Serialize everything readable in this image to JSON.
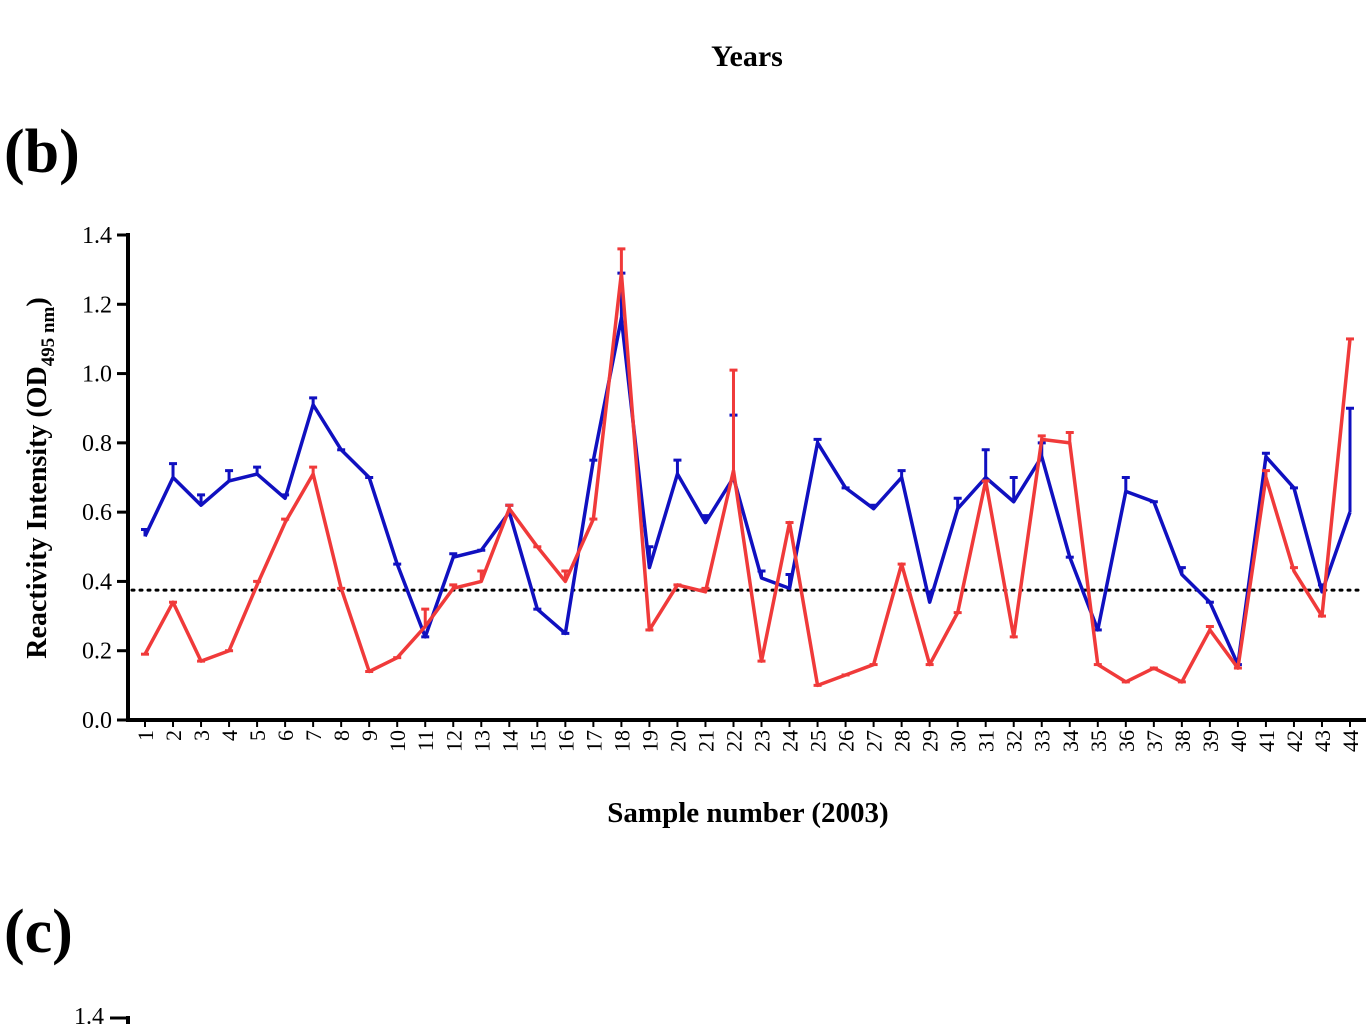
{
  "header": "Years",
  "panel_labels": [
    "(b)",
    "(c)"
  ],
  "chart_data": {
    "type": "line",
    "ylabel": "Reactivity Intensity (OD",
    "ylabel_sub": "495 nm",
    "ylabel_end": ")",
    "xlabel": "Sample number (2003)",
    "categories": [
      "1",
      "2",
      "3",
      "4",
      "5",
      "6",
      "7",
      "8",
      "9",
      "10",
      "11",
      "12",
      "13",
      "14",
      "15",
      "16",
      "17",
      "18",
      "19",
      "20",
      "21",
      "22",
      "23",
      "24",
      "25",
      "26",
      "27",
      "28",
      "29",
      "30",
      "31",
      "32",
      "33",
      "34",
      "35",
      "36",
      "37",
      "38",
      "39",
      "40",
      "41",
      "42",
      "43",
      "44"
    ],
    "series": [
      {
        "color": "#1010c0",
        "values": [
          0.53,
          0.7,
          0.62,
          0.69,
          0.71,
          0.64,
          0.91,
          0.78,
          0.7,
          0.45,
          0.24,
          0.47,
          0.49,
          0.6,
          0.32,
          0.25,
          0.75,
          1.16,
          0.44,
          0.71,
          0.57,
          0.7,
          0.41,
          0.38,
          0.8,
          0.67,
          0.61,
          0.7,
          0.34,
          0.61,
          0.7,
          0.63,
          0.76,
          0.47,
          0.26,
          0.66,
          0.63,
          0.42,
          0.34,
          0.16,
          0.76,
          0.67,
          0.37,
          0.6
        ],
        "errors": [
          0.02,
          0.04,
          0.03,
          0.03,
          0.02,
          0.01,
          0.02,
          0,
          0,
          0,
          0,
          0.01,
          0,
          0.02,
          0,
          0,
          0,
          0.13,
          0.06,
          0.04,
          0.02,
          0.18,
          0.02,
          0.04,
          0.01,
          0,
          0.01,
          0.02,
          0.03,
          0.03,
          0.08,
          0.07,
          0.04,
          0,
          0,
          0.04,
          0,
          0.02,
          0,
          0,
          0.01,
          0,
          0.02,
          0.3
        ]
      },
      {
        "color": "#f03a3a",
        "values": [
          0.19,
          0.34,
          0.17,
          0.2,
          0.39,
          0.57,
          0.71,
          0.38,
          0.14,
          0.18,
          0.27,
          0.38,
          0.4,
          0.61,
          0.5,
          0.4,
          0.58,
          1.29,
          0.26,
          0.39,
          0.37,
          0.72,
          0.17,
          0.57,
          0.1,
          0.13,
          0.16,
          0.45,
          0.16,
          0.31,
          0.69,
          0.24,
          0.81,
          0.8,
          0.16,
          0.11,
          0.15,
          0.11,
          0.26,
          0.15,
          0.7,
          0.43,
          0.3,
          1.1
        ],
        "errors": [
          0,
          0,
          0,
          0,
          0.01,
          0.01,
          0.02,
          0,
          0,
          0,
          0.05,
          0.01,
          0.03,
          0.01,
          0,
          0.03,
          0,
          0.07,
          0,
          0,
          0.01,
          0.29,
          0,
          0,
          0,
          0,
          0,
          0,
          0,
          0,
          0,
          0,
          0.01,
          0.03,
          0,
          0,
          0,
          0,
          0.01,
          0,
          0.02,
          0.01,
          0,
          0
        ]
      }
    ],
    "threshold": 0.375,
    "ylim": [
      0,
      1.4
    ],
    "yticks": [
      {
        "value": 0,
        "label": "0.0"
      },
      0.2,
      0.4,
      0.6,
      0.8,
      {
        "value": 1,
        "label": "1.0"
      },
      1.2,
      1.4
    ]
  },
  "panel_c": {
    "yticks": [
      1.4
    ]
  }
}
